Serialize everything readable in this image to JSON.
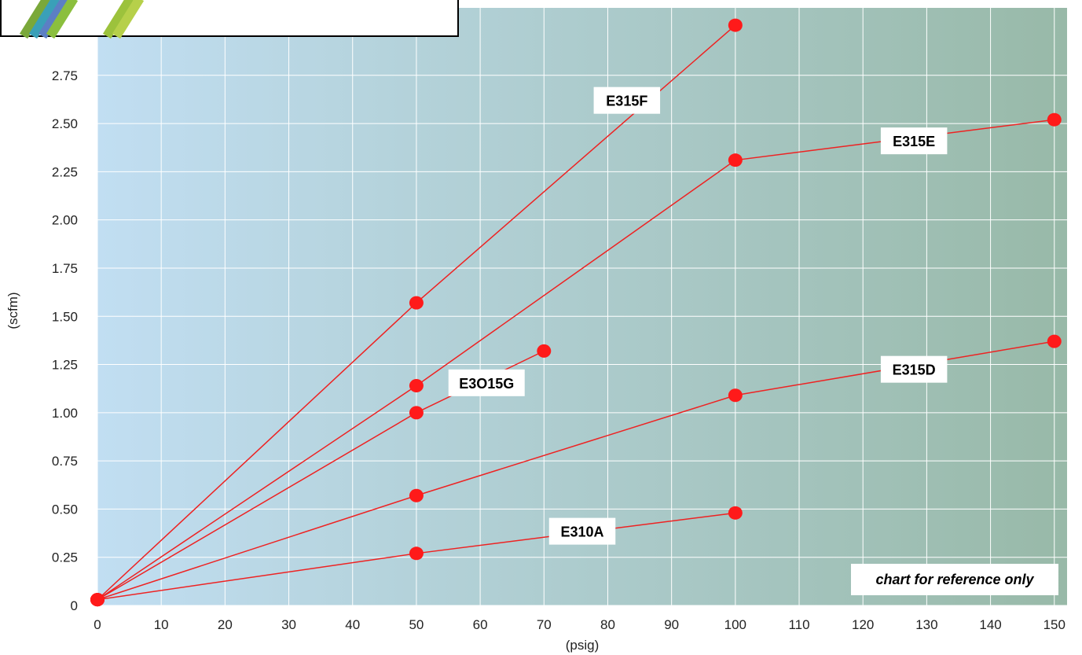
{
  "chart_data": {
    "type": "line",
    "xlabel": "(psig)",
    "ylabel": "(scfm)",
    "xlim": [
      0,
      152
    ],
    "ylim": [
      0,
      3.1
    ],
    "x_ticks": [
      "0",
      "10",
      "20",
      "30",
      "40",
      "50",
      "60",
      "70",
      "80",
      "90",
      "100",
      "110",
      "120",
      "130",
      "140",
      "150"
    ],
    "y_ticks": [
      "0",
      "0.25",
      "0.50",
      "0.75",
      "1.00",
      "1.25",
      "1.50",
      "1.75",
      "2.00",
      "2.25",
      "2.50",
      "2.75"
    ],
    "grid": true,
    "colors": {
      "line": "#ee2222",
      "marker": "#ff1a1a",
      "background_left": "#c1def2",
      "background_right": "#98b9a8",
      "grid": "#ffffff"
    },
    "series": [
      {
        "name": "E315F",
        "x": [
          0,
          50,
          100
        ],
        "y": [
          0.03,
          1.57,
          3.01
        ]
      },
      {
        "name": "E315E",
        "x": [
          0,
          50,
          100,
          150
        ],
        "y": [
          0.03,
          1.14,
          2.31,
          2.52
        ]
      },
      {
        "name": "E3O15G",
        "x": [
          0,
          50,
          70
        ],
        "y": [
          0.03,
          1.0,
          1.32
        ]
      },
      {
        "name": "E315D",
        "x": [
          0,
          50,
          100,
          150
        ],
        "y": [
          0.03,
          0.57,
          1.09,
          1.37
        ]
      },
      {
        "name": "E310A",
        "x": [
          0,
          50,
          100
        ],
        "y": [
          0.03,
          0.27,
          0.48
        ]
      }
    ],
    "annotations": [
      "chart for reference only"
    ]
  }
}
